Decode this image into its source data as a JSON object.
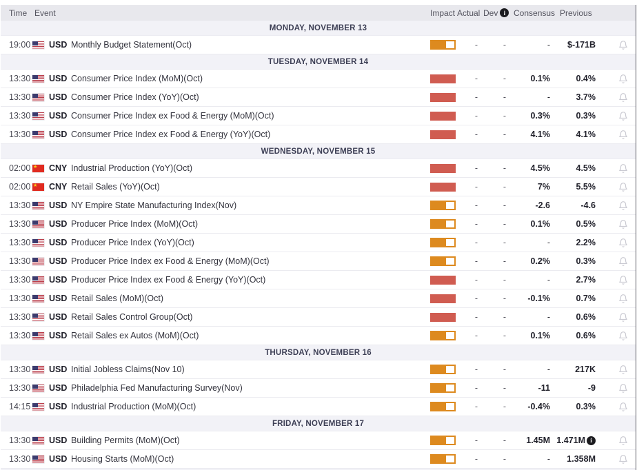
{
  "columns": {
    "time": "Time",
    "event": "Event",
    "impact": "Impact",
    "actual": "Actual",
    "dev": "Dev",
    "consensus": "Consensus",
    "previous": "Previous"
  },
  "icons": {
    "info": "i",
    "cn_star": "★"
  },
  "colors": {
    "high_impact": "#d05c51",
    "medium_impact": "#dd8a1f",
    "header_bg": "#e8e8ed",
    "section_bg": "#f2f2f7",
    "section_text": "#3d3f55",
    "bell": "#cacad2"
  },
  "sections": [
    {
      "label": "MONDAY, NOVEMBER 13",
      "events": [
        {
          "time": "19:00",
          "country": "US",
          "currency": "USD",
          "name": "Monthly Budget Statement(Oct)",
          "impact": "medium",
          "actual": "-",
          "dev": "-",
          "consensus": "-",
          "previous": "$-171B",
          "info": false
        }
      ]
    },
    {
      "label": "TUESDAY, NOVEMBER 14",
      "events": [
        {
          "time": "13:30",
          "country": "US",
          "currency": "USD",
          "name": "Consumer Price Index (MoM)(Oct)",
          "impact": "high",
          "actual": "-",
          "dev": "-",
          "consensus": "0.1%",
          "previous": "0.4%",
          "info": false
        },
        {
          "time": "13:30",
          "country": "US",
          "currency": "USD",
          "name": "Consumer Price Index (YoY)(Oct)",
          "impact": "high",
          "actual": "-",
          "dev": "-",
          "consensus": "-",
          "previous": "3.7%",
          "info": false
        },
        {
          "time": "13:30",
          "country": "US",
          "currency": "USD",
          "name": "Consumer Price Index ex Food & Energy (MoM)(Oct)",
          "impact": "high",
          "actual": "-",
          "dev": "-",
          "consensus": "0.3%",
          "previous": "0.3%",
          "info": false
        },
        {
          "time": "13:30",
          "country": "US",
          "currency": "USD",
          "name": "Consumer Price Index ex Food & Energy (YoY)(Oct)",
          "impact": "high",
          "actual": "-",
          "dev": "-",
          "consensus": "4.1%",
          "previous": "4.1%",
          "info": false
        }
      ]
    },
    {
      "label": "WEDNESDAY, NOVEMBER 15",
      "events": [
        {
          "time": "02:00",
          "country": "CN",
          "currency": "CNY",
          "name": "Industrial Production (YoY)(Oct)",
          "impact": "high",
          "actual": "-",
          "dev": "-",
          "consensus": "4.5%",
          "previous": "4.5%",
          "info": false
        },
        {
          "time": "02:00",
          "country": "CN",
          "currency": "CNY",
          "name": "Retail Sales (YoY)(Oct)",
          "impact": "high",
          "actual": "-",
          "dev": "-",
          "consensus": "7%",
          "previous": "5.5%",
          "info": false
        },
        {
          "time": "13:30",
          "country": "US",
          "currency": "USD",
          "name": "NY Empire State Manufacturing Index(Nov)",
          "impact": "medium",
          "actual": "-",
          "dev": "-",
          "consensus": "-2.6",
          "previous": "-4.6",
          "info": false
        },
        {
          "time": "13:30",
          "country": "US",
          "currency": "USD",
          "name": "Producer Price Index (MoM)(Oct)",
          "impact": "medium",
          "actual": "-",
          "dev": "-",
          "consensus": "0.1%",
          "previous": "0.5%",
          "info": false
        },
        {
          "time": "13:30",
          "country": "US",
          "currency": "USD",
          "name": "Producer Price Index (YoY)(Oct)",
          "impact": "medium",
          "actual": "-",
          "dev": "-",
          "consensus": "-",
          "previous": "2.2%",
          "info": false
        },
        {
          "time": "13:30",
          "country": "US",
          "currency": "USD",
          "name": "Producer Price Index ex Food & Energy (MoM)(Oct)",
          "impact": "medium",
          "actual": "-",
          "dev": "-",
          "consensus": "0.2%",
          "previous": "0.3%",
          "info": false
        },
        {
          "time": "13:30",
          "country": "US",
          "currency": "USD",
          "name": "Producer Price Index ex Food & Energy (YoY)(Oct)",
          "impact": "high",
          "actual": "-",
          "dev": "-",
          "consensus": "-",
          "previous": "2.7%",
          "info": false
        },
        {
          "time": "13:30",
          "country": "US",
          "currency": "USD",
          "name": "Retail Sales (MoM)(Oct)",
          "impact": "high",
          "actual": "-",
          "dev": "-",
          "consensus": "-0.1%",
          "previous": "0.7%",
          "info": false
        },
        {
          "time": "13:30",
          "country": "US",
          "currency": "USD",
          "name": "Retail Sales Control Group(Oct)",
          "impact": "high",
          "actual": "-",
          "dev": "-",
          "consensus": "-",
          "previous": "0.6%",
          "info": false
        },
        {
          "time": "13:30",
          "country": "US",
          "currency": "USD",
          "name": "Retail Sales ex Autos (MoM)(Oct)",
          "impact": "medium",
          "actual": "-",
          "dev": "-",
          "consensus": "0.1%",
          "previous": "0.6%",
          "info": false
        }
      ]
    },
    {
      "label": "THURSDAY, NOVEMBER 16",
      "events": [
        {
          "time": "13:30",
          "country": "US",
          "currency": "USD",
          "name": "Initial Jobless Claims(Nov 10)",
          "impact": "medium",
          "actual": "-",
          "dev": "-",
          "consensus": "-",
          "previous": "217K",
          "info": false
        },
        {
          "time": "13:30",
          "country": "US",
          "currency": "USD",
          "name": "Philadelphia Fed Manufacturing Survey(Nov)",
          "impact": "medium",
          "actual": "-",
          "dev": "-",
          "consensus": "-11",
          "previous": "-9",
          "info": false
        },
        {
          "time": "14:15",
          "country": "US",
          "currency": "USD",
          "name": "Industrial Production (MoM)(Oct)",
          "impact": "medium",
          "actual": "-",
          "dev": "-",
          "consensus": "-0.4%",
          "previous": "0.3%",
          "info": false
        }
      ]
    },
    {
      "label": "FRIDAY, NOVEMBER 17",
      "events": [
        {
          "time": "13:30",
          "country": "US",
          "currency": "USD",
          "name": "Building Permits (MoM)(Oct)",
          "impact": "medium",
          "actual": "-",
          "dev": "-",
          "consensus": "1.45M",
          "previous": "1.471M",
          "info": true
        },
        {
          "time": "13:30",
          "country": "US",
          "currency": "USD",
          "name": "Housing Starts (MoM)(Oct)",
          "impact": "medium",
          "actual": "-",
          "dev": "-",
          "consensus": "-",
          "previous": "1.358M",
          "info": false
        }
      ]
    }
  ]
}
